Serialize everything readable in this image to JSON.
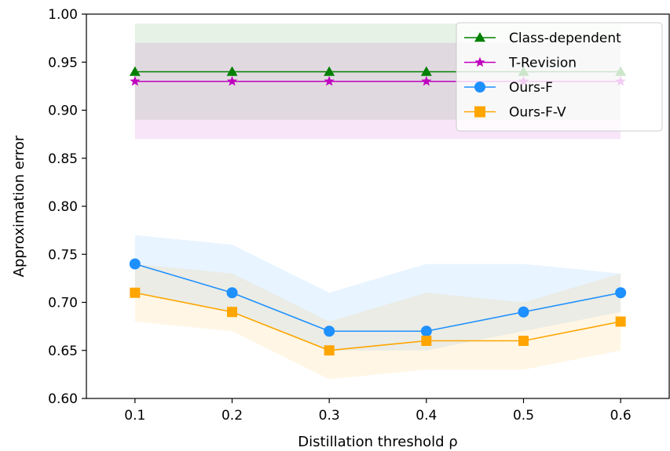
{
  "chart_data": {
    "type": "line",
    "xlabel": "Distillation threshold ρ",
    "ylabel": "Approximation error",
    "x": [
      0.1,
      0.2,
      0.3,
      0.4,
      0.5,
      0.6
    ],
    "xticks": [
      "0.1",
      "0.2",
      "0.3",
      "0.4",
      "0.5",
      "0.6"
    ],
    "yticks": [
      "0.60",
      "0.65",
      "0.70",
      "0.75",
      "0.80",
      "0.85",
      "0.90",
      "0.95",
      "1.00"
    ],
    "xlim": [
      0.05,
      0.65
    ],
    "ylim": [
      0.6,
      1.0
    ],
    "grid": false,
    "legend_position": "top-right",
    "series": [
      {
        "name": "Class-dependent",
        "color": "#008000",
        "marker": "triangle",
        "values": [
          0.94,
          0.94,
          0.94,
          0.94,
          0.94,
          0.94
        ],
        "band_lower": [
          0.89,
          0.89,
          0.89,
          0.89,
          0.89,
          0.89
        ],
        "band_upper": [
          0.99,
          0.99,
          0.99,
          0.99,
          0.99,
          0.99
        ]
      },
      {
        "name": "T-Revision",
        "color": "#BF00BF",
        "marker": "star",
        "values": [
          0.93,
          0.93,
          0.93,
          0.93,
          0.93,
          0.93
        ],
        "band_lower": [
          0.87,
          0.87,
          0.87,
          0.87,
          0.87,
          0.87
        ],
        "band_upper": [
          0.97,
          0.97,
          0.97,
          0.97,
          0.97,
          0.97
        ]
      },
      {
        "name": "Ours-F",
        "color": "#1E90FF",
        "marker": "circle",
        "values": [
          0.74,
          0.71,
          0.67,
          0.67,
          0.69,
          0.71
        ],
        "band_lower": [
          0.71,
          0.69,
          0.65,
          0.65,
          0.67,
          0.69
        ],
        "band_upper": [
          0.77,
          0.76,
          0.71,
          0.74,
          0.74,
          0.73
        ]
      },
      {
        "name": "Ours-F-V",
        "color": "#FFA500",
        "marker": "square",
        "values": [
          0.71,
          0.69,
          0.65,
          0.66,
          0.66,
          0.68
        ],
        "band_lower": [
          0.68,
          0.67,
          0.62,
          0.63,
          0.63,
          0.65
        ],
        "band_upper": [
          0.74,
          0.73,
          0.68,
          0.71,
          0.7,
          0.73
        ]
      }
    ]
  }
}
